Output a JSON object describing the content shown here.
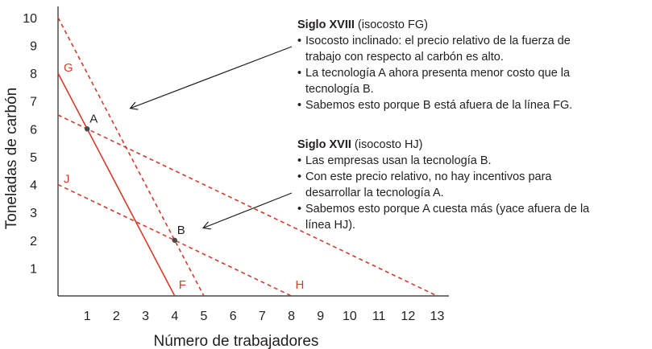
{
  "chart_data": {
    "type": "line",
    "xlabel": "Número de trabajadores",
    "ylabel": "Toneladas de carbón",
    "xlim": [
      0,
      13.4
    ],
    "ylim": [
      0,
      10.4
    ],
    "x_ticks": [
      1,
      2,
      3,
      4,
      5,
      6,
      7,
      8,
      9,
      10,
      11,
      12,
      13
    ],
    "y_ticks": [
      1,
      2,
      3,
      4,
      5,
      6,
      7,
      8,
      9,
      10
    ],
    "grid": false,
    "series": [
      {
        "name": "FG",
        "style": "solid",
        "color": "#d43c2a",
        "points": [
          [
            0,
            8
          ],
          [
            4,
            0
          ]
        ],
        "label_start": "G",
        "label_end": "F"
      },
      {
        "name": "",
        "style": "dashed",
        "color": "#d43c2a",
        "points": [
          [
            0,
            10
          ],
          [
            5,
            0
          ]
        ]
      },
      {
        "name": "",
        "style": "dashed",
        "color": "#d43c2a",
        "points": [
          [
            0,
            6.5
          ],
          [
            13,
            0
          ]
        ]
      },
      {
        "name": "HJ",
        "style": "dashed",
        "color": "#d43c2a",
        "points": [
          [
            0,
            4
          ],
          [
            8,
            0
          ]
        ],
        "label_start": "J",
        "label_end": "H"
      }
    ],
    "points": [
      {
        "label": "A",
        "x": 1,
        "y": 6
      },
      {
        "label": "B",
        "x": 4,
        "y": 2
      }
    ],
    "annotations": [
      {
        "heading_bold": "Siglo XVIII",
        "heading_rest": " (isocosto FG)",
        "bullets": [
          "Isocosto inclinado: el precio relativo de la fuerza de trabajo con respecto al carbón es alto.",
          "La tecnología A ahora presenta menor costo que la tecnología B.",
          "Sabemos esto porque B está afuera de la línea FG."
        ],
        "arrow_to": [
          2.5,
          6.75
        ]
      },
      {
        "heading_bold": "Siglo XVII",
        "heading_rest": " (isocosto HJ)",
        "bullets": [
          "Las empresas usan la tecnología B.",
          "Con este precio relativo, no hay incentivos para desarrollar la tecnología A.",
          "Sabemos esto porque A cuesta más (yace afuera de la línea HJ)."
        ],
        "arrow_to": [
          5,
          2.45
        ]
      }
    ]
  }
}
